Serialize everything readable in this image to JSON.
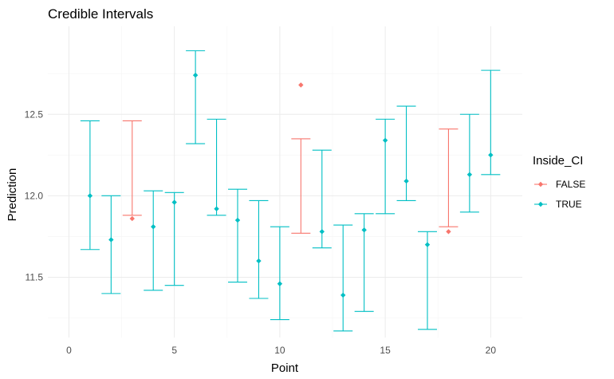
{
  "chart_data": {
    "type": "errorbar",
    "title": "Credible Intervals",
    "xlabel": "Point",
    "ylabel": "Prediction",
    "xlim": [
      -1,
      21.5
    ],
    "ylim": [
      11.13,
      13.04
    ],
    "x_ticks": [
      0,
      5,
      10,
      15,
      20
    ],
    "y_ticks": [
      11.5,
      12.0,
      12.5
    ],
    "y_tick_labels": [
      "11.5",
      "12.0",
      "12.5"
    ],
    "grid": true,
    "legend": {
      "title": "Inside_CI",
      "position": "right",
      "entries": [
        {
          "label": "FALSE",
          "color": "#F8766D"
        },
        {
          "label": "TRUE",
          "color": "#00BFC4"
        }
      ]
    },
    "points": [
      {
        "x": 1,
        "y": 12.0,
        "lower": 11.67,
        "upper": 12.46,
        "inside_ci": "TRUE"
      },
      {
        "x": 2,
        "y": 11.73,
        "lower": 11.4,
        "upper": 12.0,
        "inside_ci": "TRUE"
      },
      {
        "x": 3,
        "y": 11.86,
        "lower": 11.88,
        "upper": 12.46,
        "inside_ci": "FALSE"
      },
      {
        "x": 4,
        "y": 11.81,
        "lower": 11.42,
        "upper": 12.03,
        "inside_ci": "TRUE"
      },
      {
        "x": 5,
        "y": 11.96,
        "lower": 11.45,
        "upper": 12.02,
        "inside_ci": "TRUE"
      },
      {
        "x": 6,
        "y": 12.74,
        "lower": 12.32,
        "upper": 12.89,
        "inside_ci": "TRUE"
      },
      {
        "x": 7,
        "y": 11.92,
        "lower": 11.88,
        "upper": 12.47,
        "inside_ci": "TRUE"
      },
      {
        "x": 8,
        "y": 11.85,
        "lower": 11.47,
        "upper": 12.04,
        "inside_ci": "TRUE"
      },
      {
        "x": 9,
        "y": 11.6,
        "lower": 11.37,
        "upper": 11.97,
        "inside_ci": "TRUE"
      },
      {
        "x": 10,
        "y": 11.46,
        "lower": 11.24,
        "upper": 11.81,
        "inside_ci": "TRUE"
      },
      {
        "x": 11,
        "y": 12.68,
        "lower": 11.77,
        "upper": 12.35,
        "inside_ci": "FALSE"
      },
      {
        "x": 12,
        "y": 11.78,
        "lower": 11.68,
        "upper": 12.28,
        "inside_ci": "TRUE"
      },
      {
        "x": 13,
        "y": 11.39,
        "lower": 11.17,
        "upper": 11.82,
        "inside_ci": "TRUE"
      },
      {
        "x": 14,
        "y": 11.79,
        "lower": 11.29,
        "upper": 11.89,
        "inside_ci": "TRUE"
      },
      {
        "x": 15,
        "y": 12.34,
        "lower": 11.89,
        "upper": 12.47,
        "inside_ci": "TRUE"
      },
      {
        "x": 16,
        "y": 12.09,
        "lower": 11.97,
        "upper": 12.55,
        "inside_ci": "TRUE"
      },
      {
        "x": 17,
        "y": 11.7,
        "lower": 11.18,
        "upper": 11.78,
        "inside_ci": "TRUE"
      },
      {
        "x": 18,
        "y": 11.78,
        "lower": 11.81,
        "upper": 12.41,
        "inside_ci": "FALSE"
      },
      {
        "x": 19,
        "y": 12.13,
        "lower": 11.9,
        "upper": 12.5,
        "inside_ci": "TRUE"
      },
      {
        "x": 20,
        "y": 12.25,
        "lower": 12.13,
        "upper": 12.77,
        "inside_ci": "TRUE"
      }
    ]
  }
}
